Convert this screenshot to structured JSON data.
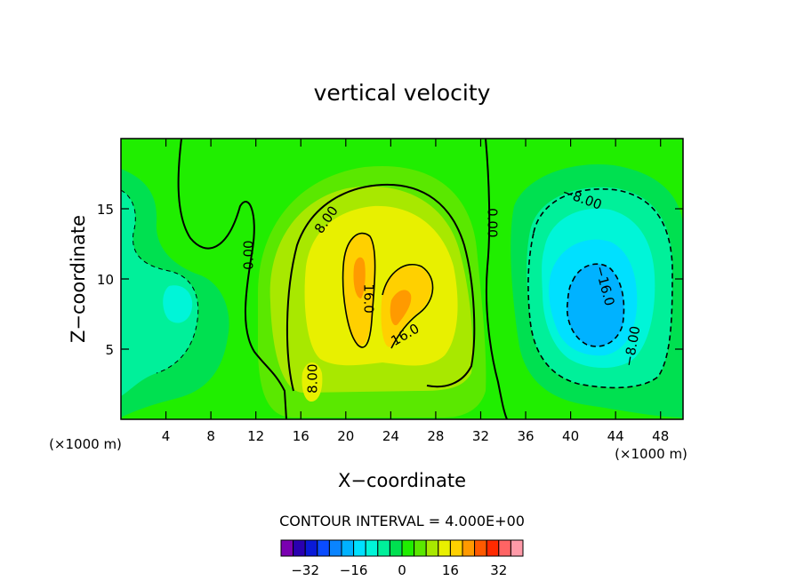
{
  "chart_data": {
    "type": "heatmap",
    "title": "vertical velocity",
    "xlabel": "X−coordinate",
    "ylabel": "Z−coordinate",
    "x_unit_left": "(×1000 m)",
    "x_unit_right": "(×1000 m)",
    "xlim": [
      0,
      50
    ],
    "ylim": [
      0,
      20
    ],
    "x_ticks": [
      4,
      8,
      12,
      16,
      20,
      24,
      28,
      32,
      36,
      40,
      44,
      48
    ],
    "y_ticks": [
      5,
      10,
      15
    ],
    "contour_interval_label": "CONTOUR INTERVAL = 4.000E+00",
    "contour_labels": [
      {
        "text": "0.00",
        "x": 11.4,
        "y": 11.7,
        "angle": -90
      },
      {
        "text": "8.00",
        "x": 18.3,
        "y": 14.2,
        "angle": -55
      },
      {
        "text": "16.0",
        "x": 22.0,
        "y": 8.6,
        "angle": 90
      },
      {
        "text": "16.0",
        "x": 25.3,
        "y": 6.0,
        "angle": -30
      },
      {
        "text": "8.00",
        "x": 17.1,
        "y": 2.9,
        "angle": -90
      },
      {
        "text": "0.00",
        "x": 33.0,
        "y": 14.0,
        "angle": 90
      },
      {
        "text": "−8.00",
        "x": 41.0,
        "y": 15.7,
        "angle": 20
      },
      {
        "text": "−16.0",
        "x": 43.0,
        "y": 9.5,
        "angle": 75
      },
      {
        "text": "−8.00",
        "x": 45.5,
        "y": 5.2,
        "angle": -80
      }
    ],
    "colorbar": {
      "levels": [
        -36,
        -32,
        -28,
        -24,
        -20,
        -16,
        -12,
        -8,
        -4,
        0,
        4,
        8,
        12,
        16,
        20,
        24,
        28,
        32,
        36
      ],
      "tick_labels": [
        {
          "value": -32,
          "text": "−32"
        },
        {
          "value": -16,
          "text": "−16"
        },
        {
          "value": 0,
          "text": "0"
        },
        {
          "value": 16,
          "text": "16"
        },
        {
          "value": 32,
          "text": "32"
        }
      ],
      "colors": [
        "#7a00b0",
        "#2a00b0",
        "#0a1ad8",
        "#0a4cff",
        "#0a84ff",
        "#00b2ff",
        "#00e0ff",
        "#00f5d8",
        "#00f09a",
        "#00e050",
        "#20ee00",
        "#5ae800",
        "#a8e800",
        "#e8f000",
        "#ffd000",
        "#ff9a00",
        "#ff5a00",
        "#ff2a00",
        "#ff6464",
        "#ff9aa8"
      ]
    }
  }
}
